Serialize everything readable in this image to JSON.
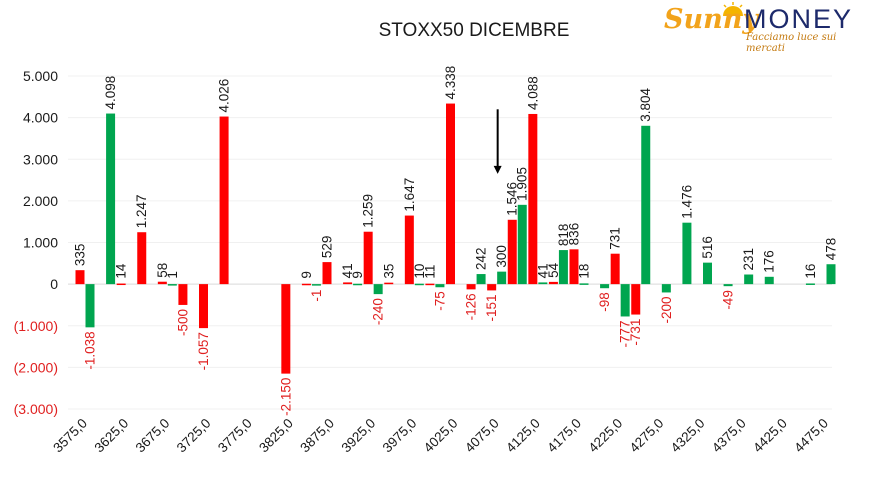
{
  "logo": {
    "sunny": "Sunny",
    "money": "MONEY",
    "tagline": "Facciamo luce sui mercati"
  },
  "colors": {
    "positive": "#00a54f",
    "negative": "#ff0000",
    "label_negative": "#e02020",
    "label_positive": "#1a1a1a",
    "arrow": "#000000"
  },
  "chart_data": {
    "type": "bar",
    "title": "STOXX50 DICEMBRE",
    "ylim": [
      -3000,
      5000
    ],
    "yticks": [
      {
        "value": 5000,
        "label": "5.000"
      },
      {
        "value": 4000,
        "label": "4.000"
      },
      {
        "value": 3000,
        "label": "3.000"
      },
      {
        "value": 2000,
        "label": "2.000"
      },
      {
        "value": 1000,
        "label": "1.000"
      },
      {
        "value": 0,
        "label": "0"
      },
      {
        "value": -1000,
        "label": "(1.000)"
      },
      {
        "value": -2000,
        "label": "(2.000)"
      },
      {
        "value": -3000,
        "label": "(3.000)"
      }
    ],
    "x_tick_labels": [
      "3575,0",
      "3625,0",
      "3675,0",
      "3725,0",
      "3775,0",
      "3825,0",
      "3875,0",
      "3925,0",
      "3975,0",
      "4025,0",
      "4075,0",
      "4125,0",
      "4175,0",
      "4225,0",
      "4275,0",
      "4325,0",
      "4375,0",
      "4425,0",
      "4475,0"
    ],
    "categories": [
      3575,
      3600,
      3625,
      3650,
      3675,
      3700,
      3725,
      3750,
      3775,
      3800,
      3825,
      3850,
      3875,
      3900,
      3925,
      3950,
      3975,
      4000,
      4025,
      4050,
      4075,
      4100,
      4125,
      4150,
      4175,
      4200,
      4225,
      4250,
      4275,
      4300,
      4325,
      4350,
      4375,
      4400,
      4425,
      4450,
      4475
    ],
    "series": [
      {
        "color": "#ff0000",
        "values": [
          335,
          null,
          14,
          1247,
          58,
          -500,
          -1057,
          4026,
          null,
          null,
          -2150,
          9,
          529,
          41,
          1259,
          35,
          1647,
          11,
          4338,
          -126,
          -151,
          1546,
          4088,
          54,
          836,
          null,
          731,
          -731,
          null,
          null,
          null,
          null,
          null,
          null,
          null,
          null,
          null
        ],
        "labels": [
          "335",
          "",
          "14",
          "1.247",
          "58",
          "-500",
          "-1.057",
          "4.026",
          "",
          "",
          "-2.150",
          "9",
          "529",
          "41",
          "1.259",
          "35",
          "1.647",
          "11",
          "4.338",
          "-126",
          "-151",
          "1.546",
          "4.088",
          "54",
          "836",
          "",
          "731",
          "-731",
          "",
          "",
          "",
          "",
          "",
          "",
          "",
          "",
          ""
        ]
      },
      {
        "color": "#00a54f",
        "values": [
          -1038,
          4098,
          null,
          null,
          1,
          null,
          null,
          null,
          null,
          null,
          null,
          -1,
          null,
          9,
          -240,
          null,
          10,
          -75,
          null,
          242,
          300,
          1905,
          41,
          818,
          18,
          -98,
          -777,
          3804,
          -200,
          1476,
          516,
          -49,
          231,
          176,
          null,
          16,
          478
        ],
        "labels": [
          "-1.038",
          "4.098",
          "",
          "",
          "1",
          "",
          "",
          "",
          "",
          "",
          "",
          "-1",
          "",
          "9",
          "-240",
          "",
          "10",
          "-75",
          "",
          "242",
          "300",
          "1.905",
          "41",
          "818",
          "18",
          "-98",
          "-777",
          "3.804",
          "-200",
          "1.476",
          "516",
          "-49",
          "231",
          "176",
          "",
          "16",
          "478"
        ]
      }
    ],
    "annotation": {
      "type": "arrow",
      "at_x": 4075,
      "from_y": 4200,
      "to_y": 2650
    }
  }
}
